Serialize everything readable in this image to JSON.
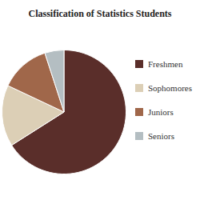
{
  "chart_data": {
    "type": "pie",
    "title": "Classification of Statistics Students",
    "categories": [
      "Freshmen",
      "Sophomores",
      "Juniors",
      "Seniors"
    ],
    "values": [
      66,
      16,
      13,
      5
    ],
    "colors": [
      "#5a2e2a",
      "#dccfb6",
      "#a0674a",
      "#b4bec2"
    ],
    "legend": "right"
  }
}
